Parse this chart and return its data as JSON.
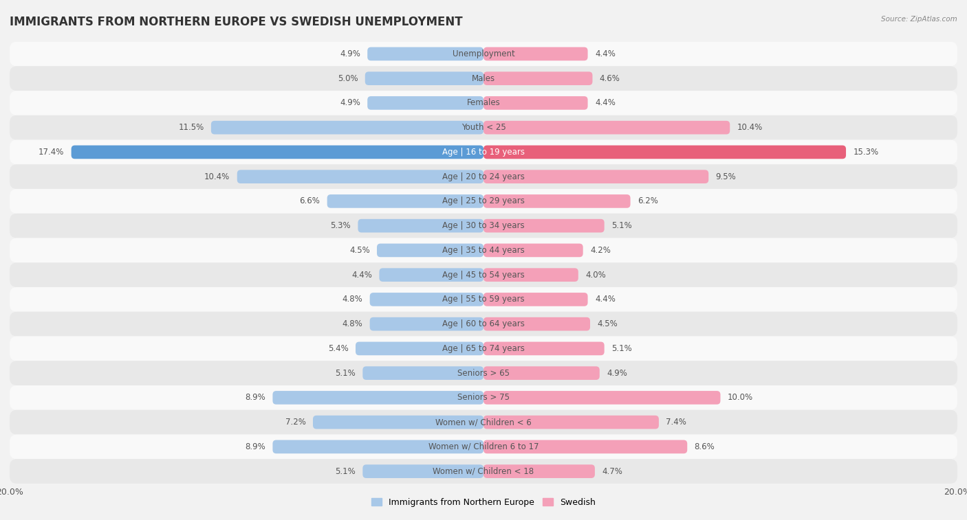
{
  "title": "IMMIGRANTS FROM NORTHERN EUROPE VS SWEDISH UNEMPLOYMENT",
  "source": "Source: ZipAtlas.com",
  "categories": [
    "Unemployment",
    "Males",
    "Females",
    "Youth < 25",
    "Age | 16 to 19 years",
    "Age | 20 to 24 years",
    "Age | 25 to 29 years",
    "Age | 30 to 34 years",
    "Age | 35 to 44 years",
    "Age | 45 to 54 years",
    "Age | 55 to 59 years",
    "Age | 60 to 64 years",
    "Age | 65 to 74 years",
    "Seniors > 65",
    "Seniors > 75",
    "Women w/ Children < 6",
    "Women w/ Children 6 to 17",
    "Women w/ Children < 18"
  ],
  "left_values": [
    4.9,
    5.0,
    4.9,
    11.5,
    17.4,
    10.4,
    6.6,
    5.3,
    4.5,
    4.4,
    4.8,
    4.8,
    5.4,
    5.1,
    8.9,
    7.2,
    8.9,
    5.1
  ],
  "right_values": [
    4.4,
    4.6,
    4.4,
    10.4,
    15.3,
    9.5,
    6.2,
    5.1,
    4.2,
    4.0,
    4.4,
    4.5,
    5.1,
    4.9,
    10.0,
    7.4,
    8.6,
    4.7
  ],
  "left_color": "#a8c8e8",
  "right_color": "#f4a0b8",
  "left_label": "Immigrants from Northern Europe",
  "right_label": "Swedish",
  "axis_max": 20.0,
  "bar_height": 0.55,
  "background_color": "#f2f2f2",
  "row_color_odd": "#f9f9f9",
  "row_color_even": "#e8e8e8",
  "title_fontsize": 12,
  "label_fontsize": 8.5,
  "value_fontsize": 8.5,
  "special_row": 4,
  "special_left_color": "#5b9bd5",
  "special_right_color": "#e8607a",
  "special_text_color": "#ffffff",
  "normal_text_color": "#555555",
  "value_text_color": "#555555"
}
